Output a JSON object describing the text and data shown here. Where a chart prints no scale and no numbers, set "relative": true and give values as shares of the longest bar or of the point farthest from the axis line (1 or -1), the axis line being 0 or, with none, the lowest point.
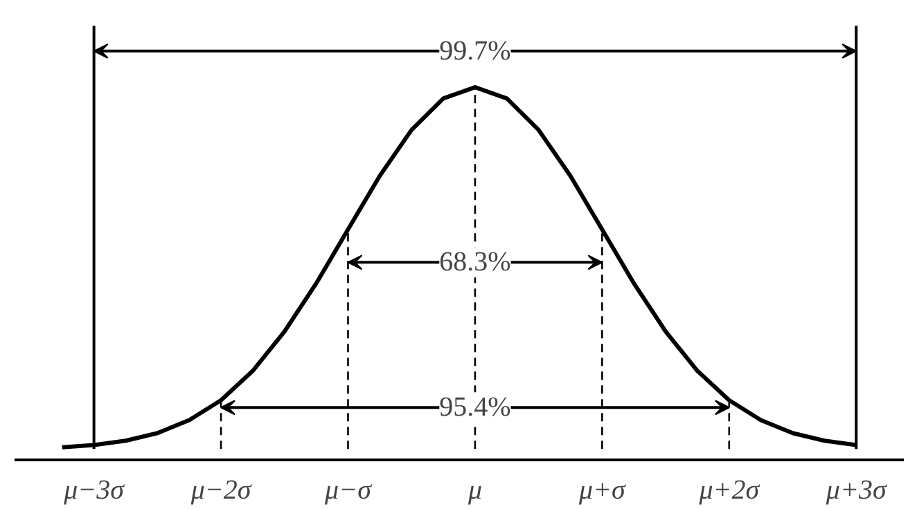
{
  "chart_data": {
    "type": "line",
    "relative": true,
    "color": "#000000",
    "line_style": "solid",
    "marker": "none",
    "grid": false,
    "tick_labels": "x",
    "categories": [
      null,
      null,
      "μ−3σ",
      null,
      null,
      null,
      "μ−2σ",
      null,
      null,
      null,
      "μ−σ",
      null,
      null,
      null,
      "μ",
      null,
      null,
      null,
      "μ+σ",
      null,
      null,
      null,
      "μ+2σ",
      null,
      null,
      null,
      "μ+3σ",
      null
    ],
    "values": [
      null,
      0.005,
      0.011,
      0.023,
      0.044,
      0.08,
      0.135,
      0.216,
      0.325,
      0.458,
      0.607,
      0.755,
      0.882,
      0.969,
      1,
      0.969,
      0.882,
      0.755,
      0.607,
      0.458,
      0.325,
      0.216,
      0.135,
      0.08,
      0.044,
      0.023,
      0.011,
      null
    ],
    "ref_lines": [
      {
        "axis": "x",
        "value": "μ−3σ",
        "line_style": "solid"
      },
      {
        "axis": "x",
        "value": "μ+3σ",
        "line_style": "solid"
      },
      {
        "axis": "x",
        "value": "μ−2σ",
        "line_style": "dashed"
      },
      {
        "axis": "x",
        "value": "μ−σ",
        "line_style": "dashed"
      },
      {
        "axis": "x",
        "value": "μ",
        "line_style": "dashed"
      },
      {
        "axis": "x",
        "value": "μ+σ",
        "line_style": "dashed"
      },
      {
        "axis": "x",
        "value": "μ+2σ",
        "line_style": "dashed"
      }
    ],
    "annotations": [
      "99.7%",
      "95.4%",
      "68.3%"
    ]
  }
}
